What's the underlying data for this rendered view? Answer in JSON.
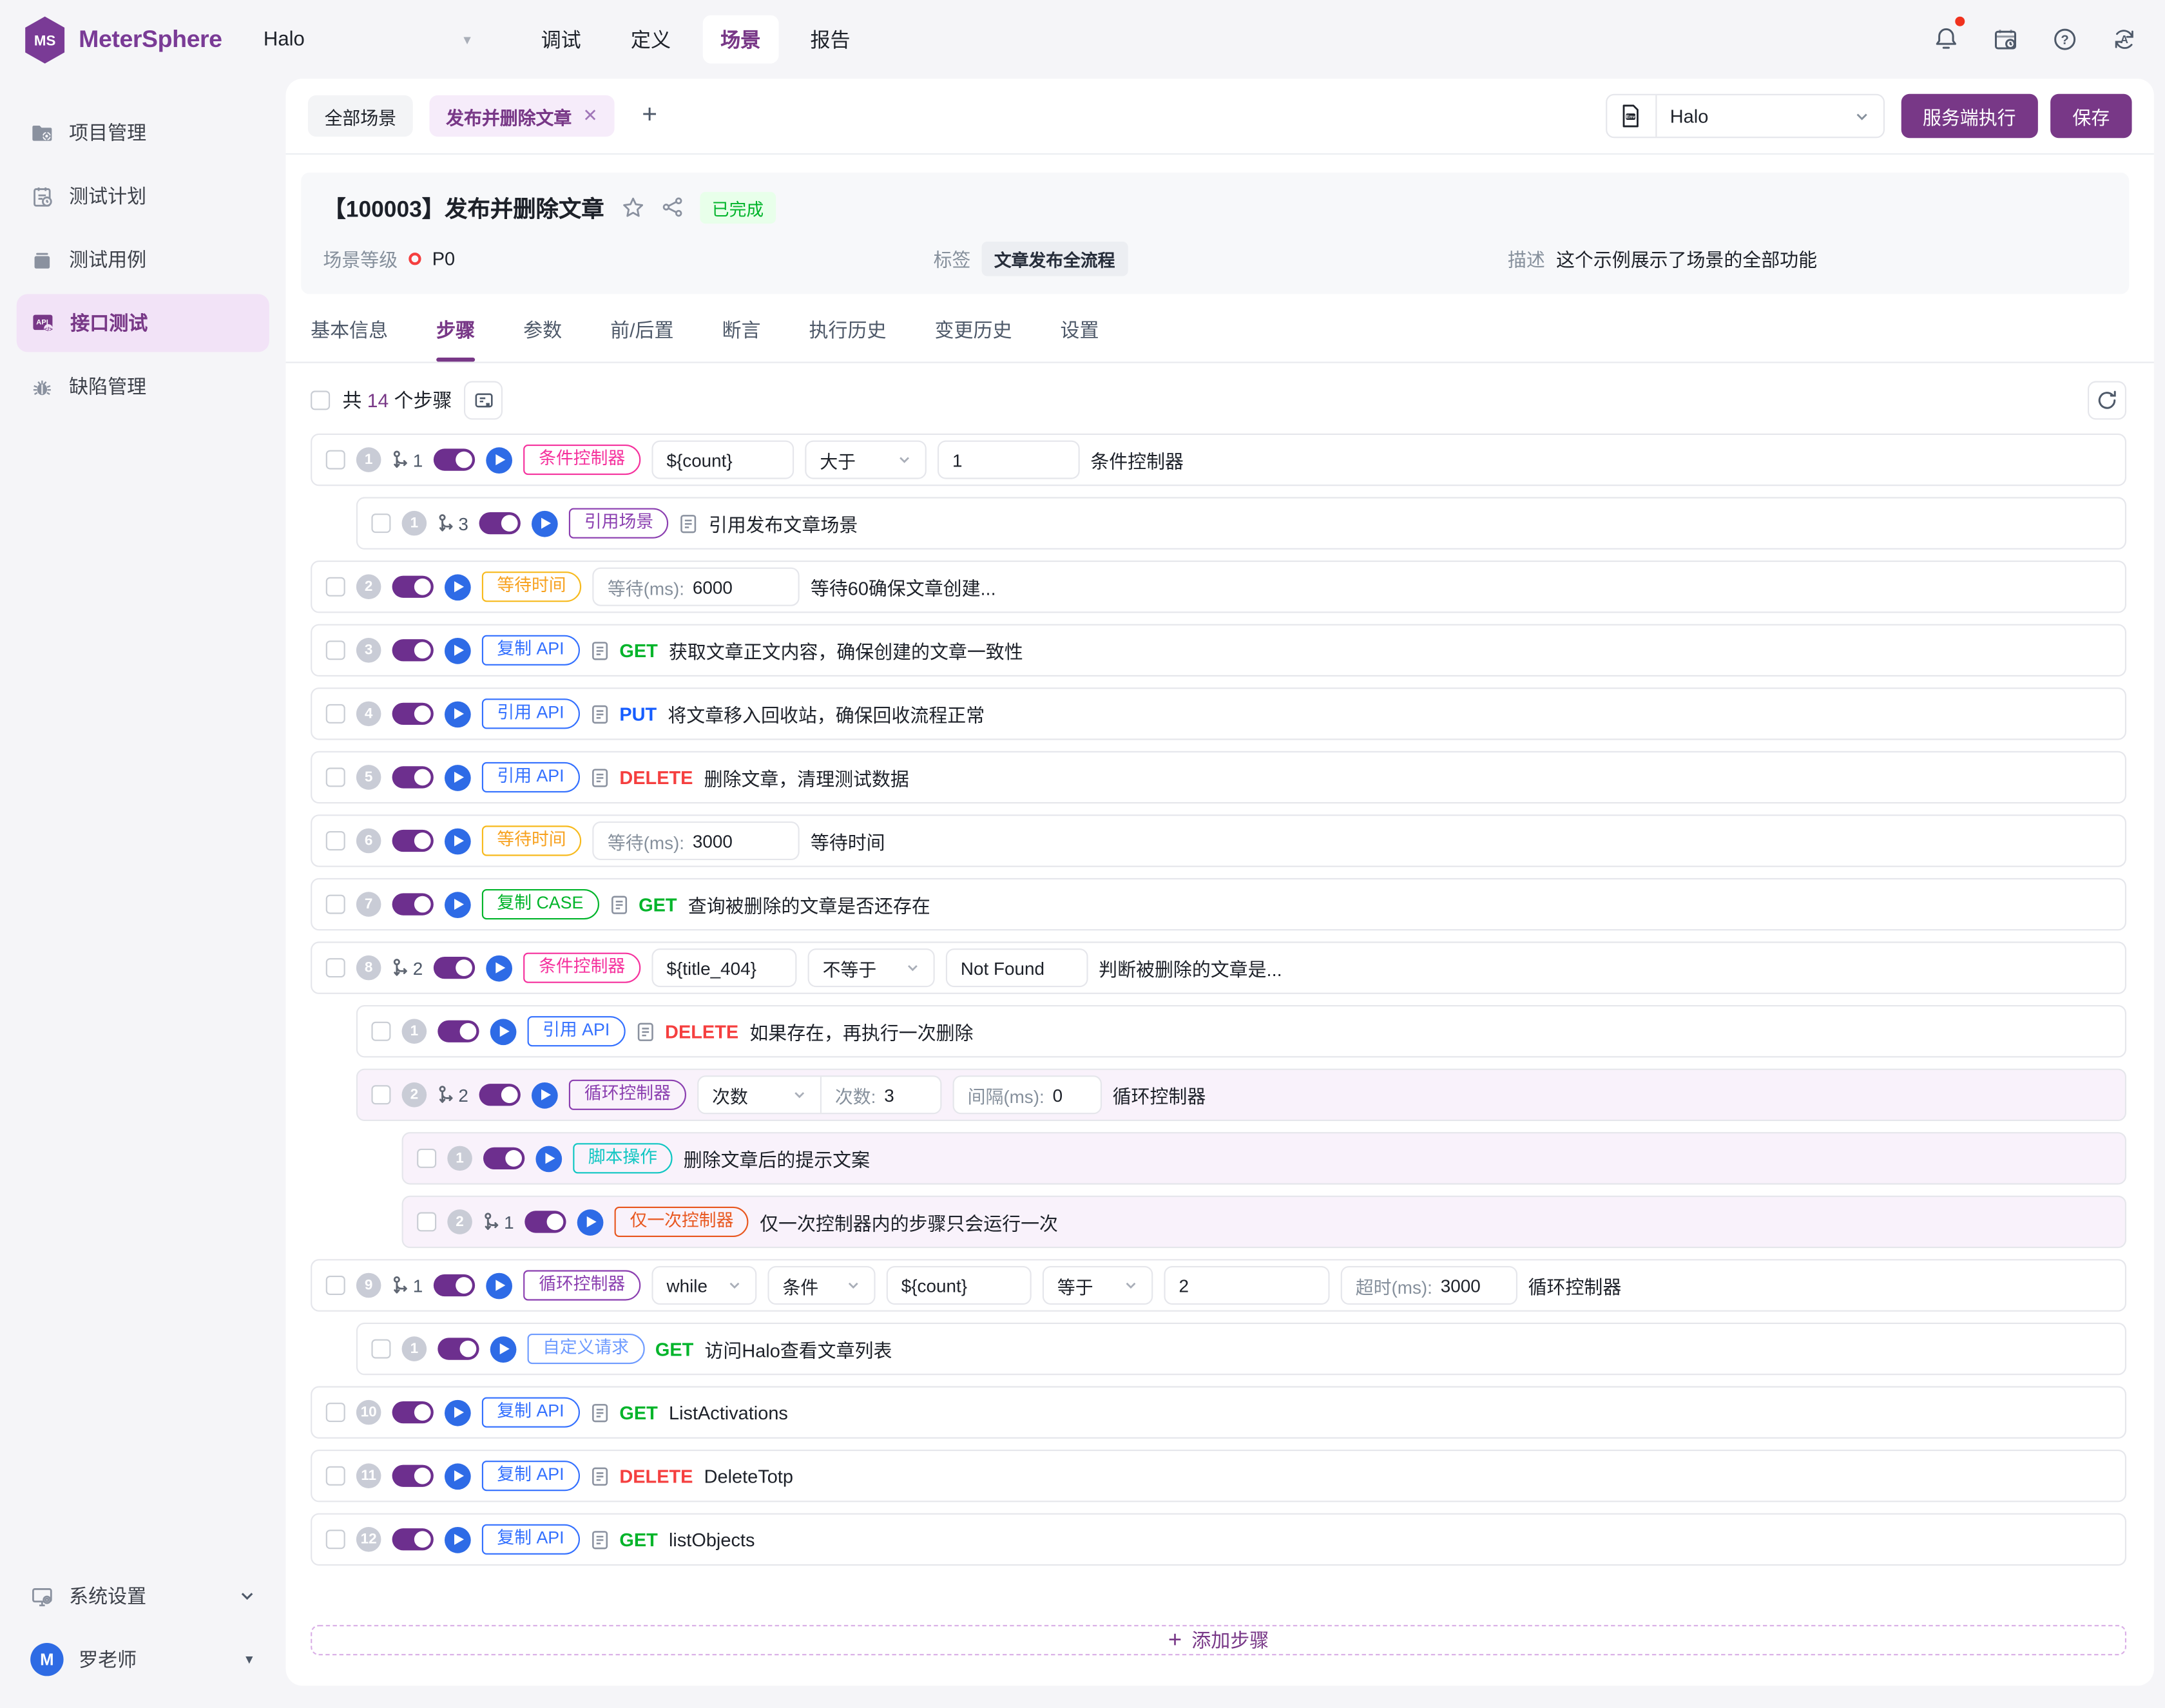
{
  "header": {
    "brand": "MeterSphere",
    "project": "Halo",
    "nav": [
      "调试",
      "定义",
      "场景",
      "报告"
    ],
    "active_nav": "场景",
    "icons": [
      "bell-icon",
      "task-center-icon",
      "help-icon",
      "language-icon"
    ]
  },
  "sidebar": {
    "items": [
      {
        "label": "项目管理",
        "icon": "project-folder-icon"
      },
      {
        "label": "测试计划",
        "icon": "test-plan-icon"
      },
      {
        "label": "测试用例",
        "icon": "test-case-icon"
      },
      {
        "label": "接口测试",
        "icon": "api-test-icon",
        "active": true
      },
      {
        "label": "缺陷管理",
        "icon": "bug-icon"
      }
    ],
    "settings": "系统设置",
    "user": "罗老师"
  },
  "tabbar": {
    "tabs": [
      {
        "label": "全部场景"
      },
      {
        "label": "发布并删除文章",
        "closable": true,
        "active": true
      }
    ],
    "env_value": "Halo",
    "run_button": "服务端执行",
    "save_button": "保存"
  },
  "scenario": {
    "title": "【100003】发布并删除文章",
    "status": "已完成",
    "level_label": "场景等级",
    "level": "P0",
    "tag_label": "标签",
    "tag": "文章发布全流程",
    "desc_label": "描述",
    "desc": "这个示例展示了场景的全部功能"
  },
  "tabs": {
    "items": [
      "基本信息",
      "步骤",
      "参数",
      "前/后置",
      "断言",
      "执行历史",
      "变更历史",
      "设置"
    ],
    "active": "步骤"
  },
  "toolbar": {
    "total_prefix": "共",
    "count": "14",
    "total_suffix": "个步骤"
  },
  "steps": [
    {
      "num": "1",
      "indent": 0,
      "fork": "1",
      "badge": "条件控制器",
      "color": "pink",
      "parts": [
        {
          "t": "input",
          "v": "${count}",
          "w": 103
        },
        {
          "t": "select",
          "v": "大于",
          "w": 88
        },
        {
          "t": "input",
          "v": "1",
          "w": 103
        },
        {
          "t": "text",
          "v": "条件控制器"
        }
      ]
    },
    {
      "num": "1",
      "indent": 1,
      "fork": "3",
      "badge": "引用场景",
      "color": "purple",
      "parts": [
        {
          "t": "doc"
        },
        {
          "t": "text",
          "v": "引用发布文章场景"
        }
      ]
    },
    {
      "num": "2",
      "indent": 0,
      "badge": "等待时间",
      "color": "amber",
      "parts": [
        {
          "t": "input",
          "label": "等待(ms):",
          "v": "6000",
          "w": 150
        },
        {
          "t": "text",
          "v": "等待60确保文章创建..."
        }
      ]
    },
    {
      "num": "3",
      "indent": 0,
      "badge": "复制 API",
      "color": "blue",
      "parts": [
        {
          "t": "doc"
        },
        {
          "t": "method",
          "v": "GET",
          "c": "green"
        },
        {
          "t": "text",
          "v": "获取文章正文内容，确保创建的文章一致性"
        }
      ]
    },
    {
      "num": "4",
      "indent": 0,
      "badge": "引用 API",
      "color": "blue",
      "parts": [
        {
          "t": "doc"
        },
        {
          "t": "method",
          "v": "PUT",
          "c": "blue"
        },
        {
          "t": "text",
          "v": "将文章移入回收站，确保回收流程正常"
        }
      ]
    },
    {
      "num": "5",
      "indent": 0,
      "badge": "引用 API",
      "color": "blue",
      "parts": [
        {
          "t": "doc"
        },
        {
          "t": "method",
          "v": "DELETE",
          "c": "red"
        },
        {
          "t": "text",
          "v": "删除文章，清理测试数据"
        }
      ]
    },
    {
      "num": "6",
      "indent": 0,
      "badge": "等待时间",
      "color": "amber",
      "parts": [
        {
          "t": "input",
          "label": "等待(ms):",
          "v": "3000",
          "w": 150
        },
        {
          "t": "text",
          "v": "等待时间"
        }
      ]
    },
    {
      "num": "7",
      "indent": 0,
      "badge": "复制 CASE",
      "color": "green",
      "parts": [
        {
          "t": "doc"
        },
        {
          "t": "method",
          "v": "GET",
          "c": "green"
        },
        {
          "t": "text",
          "v": "查询被删除的文章是否还存在"
        }
      ]
    },
    {
      "num": "8",
      "indent": 0,
      "fork": "2",
      "badge": "条件控制器",
      "color": "pink",
      "parts": [
        {
          "t": "input",
          "v": "${title_404}",
          "w": 105
        },
        {
          "t": "select",
          "v": "不等于",
          "w": 92
        },
        {
          "t": "input",
          "v": "Not Found",
          "w": 103
        },
        {
          "t": "text",
          "v": "判断被删除的文章是..."
        }
      ]
    },
    {
      "num": "1",
      "indent": 1,
      "badge": "引用 API",
      "color": "blue",
      "parts": [
        {
          "t": "doc"
        },
        {
          "t": "method",
          "v": "DELETE",
          "c": "red"
        },
        {
          "t": "text",
          "v": "如果存在，再执行一次删除"
        }
      ]
    },
    {
      "num": "2",
      "indent": 1,
      "fork": "2",
      "tinted": true,
      "badge": "循环控制器",
      "color": "purple",
      "parts": [
        {
          "t": "combo",
          "sel": "次数",
          "label": "次数:",
          "v": "3",
          "selW": 88,
          "inW": 86
        },
        {
          "t": "input",
          "label": "间隔(ms):",
          "v": "0",
          "w": 108
        },
        {
          "t": "text",
          "v": "循环控制器"
        }
      ]
    },
    {
      "num": "1",
      "indent": 2,
      "tinted": true,
      "badge": "脚本操作",
      "color": "teal",
      "parts": [
        {
          "t": "text",
          "v": "删除文章后的提示文案"
        }
      ]
    },
    {
      "num": "2",
      "indent": 2,
      "fork": "1",
      "tinted": true,
      "badge": "仅一次控制器",
      "color": "orange",
      "parts": [
        {
          "t": "text",
          "v": "仅一次控制器内的步骤只会运行一次"
        }
      ]
    },
    {
      "num": "9",
      "indent": 0,
      "fork": "1",
      "badge": "循环控制器",
      "color": "purple",
      "parts": [
        {
          "t": "select",
          "v": "while",
          "w": 76
        },
        {
          "t": "select",
          "v": "条件",
          "w": 78
        },
        {
          "t": "input",
          "v": "${count}",
          "w": 105
        },
        {
          "t": "select",
          "v": "等于",
          "w": 80
        },
        {
          "t": "input",
          "v": "2",
          "w": 120
        },
        {
          "t": "input",
          "label": "超时(ms):",
          "v": "3000",
          "w": 128
        },
        {
          "t": "text",
          "v": "循环控制器"
        }
      ]
    },
    {
      "num": "1",
      "indent": 1,
      "badge": "自定义请求",
      "color": "lightblue",
      "parts": [
        {
          "t": "method",
          "v": "GET",
          "c": "green"
        },
        {
          "t": "text",
          "v": "访问Halo查看文章列表"
        }
      ]
    },
    {
      "num": "10",
      "indent": 0,
      "badge": "复制 API",
      "color": "blue",
      "parts": [
        {
          "t": "doc"
        },
        {
          "t": "method",
          "v": "GET",
          "c": "green"
        },
        {
          "t": "text",
          "v": "ListActivations"
        }
      ]
    },
    {
      "num": "11",
      "indent": 0,
      "badge": "复制 API",
      "color": "blue",
      "parts": [
        {
          "t": "doc"
        },
        {
          "t": "method",
          "v": "DELETE",
          "c": "red"
        },
        {
          "t": "text",
          "v": "DeleteTotp"
        }
      ]
    },
    {
      "num": "12",
      "indent": 0,
      "badge": "复制 API",
      "color": "blue",
      "parts": [
        {
          "t": "doc"
        },
        {
          "t": "method",
          "v": "GET",
          "c": "green"
        },
        {
          "t": "text",
          "v": "listObjects"
        }
      ]
    }
  ],
  "add_step_label": "添加步骤",
  "colors": {
    "primary": "#783887",
    "blue": "#3370ff",
    "green": "#00b42a",
    "red": "#f53f3f",
    "amber": "#f7ba1e",
    "pink": "#f5319d",
    "teal": "#0fc6c2",
    "orange": "#e8571f",
    "play_blue": "#2e6be6",
    "status_done_bg": "#e8ffea"
  }
}
